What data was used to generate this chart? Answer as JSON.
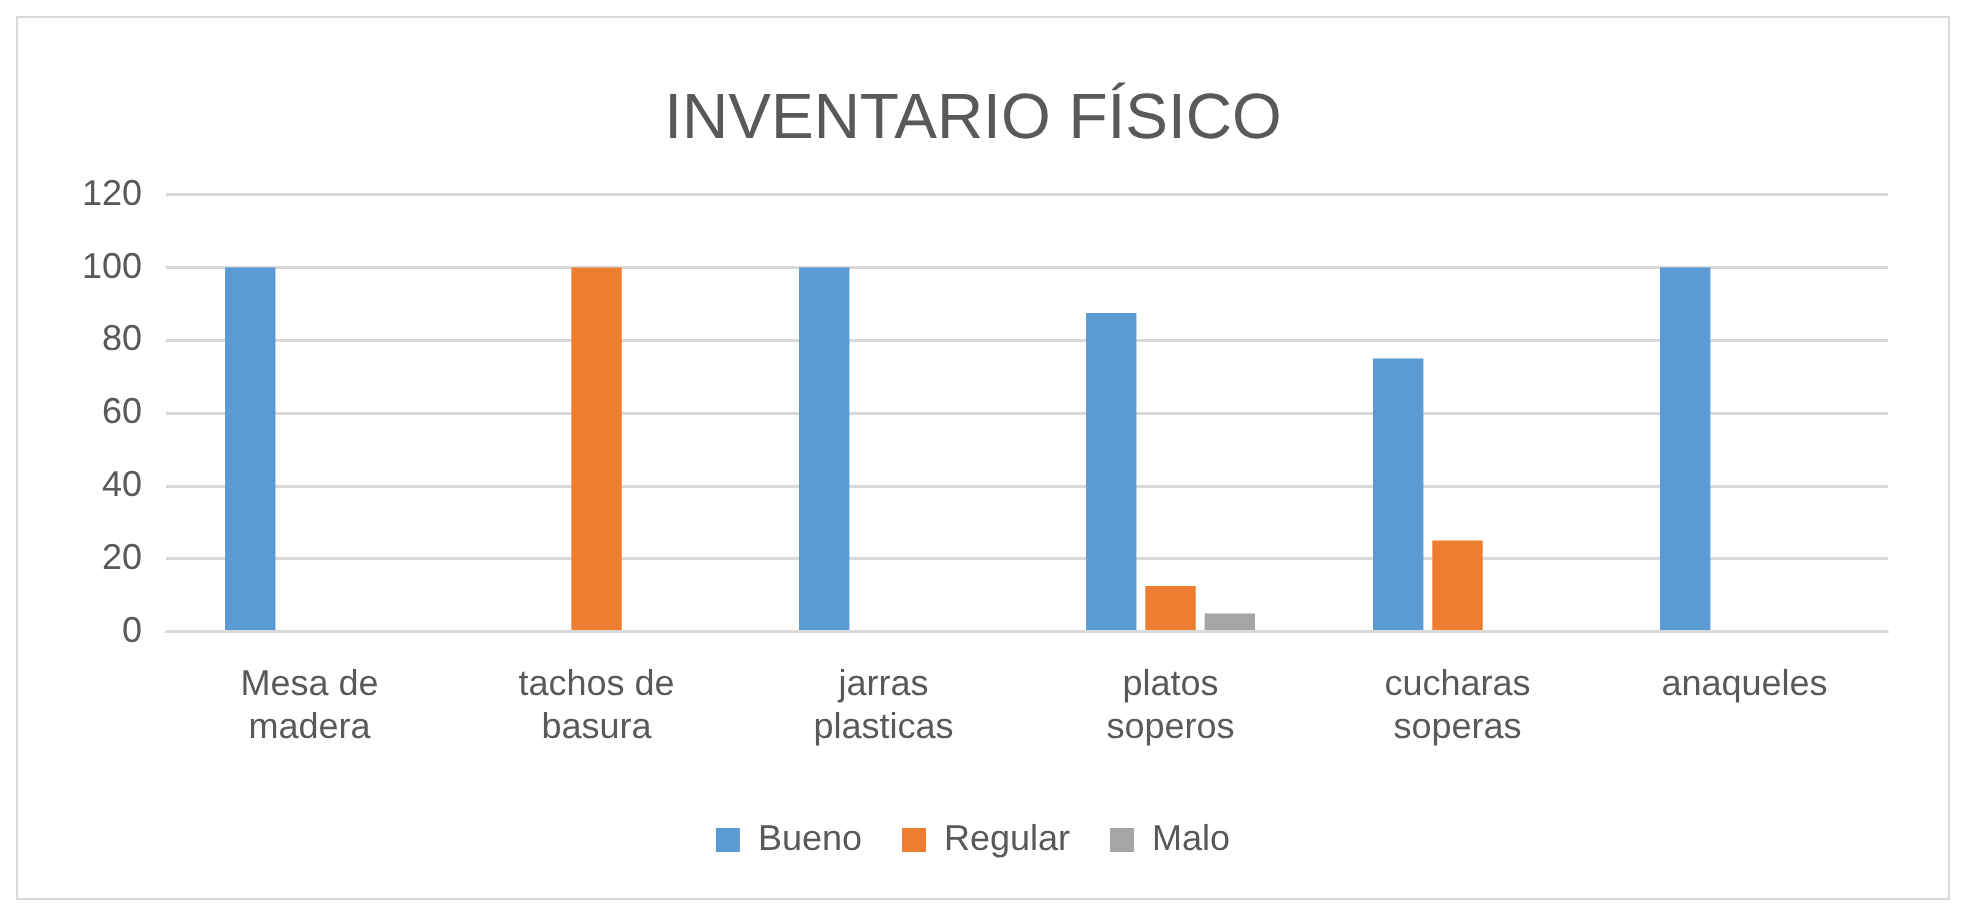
{
  "chart_data": {
    "type": "bar",
    "title": "INVENTARIO FÍSICO",
    "categories": [
      "Mesa de madera",
      "tachos de basura",
      "jarras plasticas",
      "platos soperos",
      "cucharas soperas",
      "anaqueles"
    ],
    "series": [
      {
        "name": "Bueno",
        "color": "#5b9bd5",
        "values": [
          100,
          0,
          100,
          87.5,
          75,
          100
        ]
      },
      {
        "name": "Regular",
        "color": "#ed7d31",
        "values": [
          0,
          100,
          0,
          12.5,
          25,
          0
        ]
      },
      {
        "name": "Malo",
        "color": "#a5a5a5",
        "values": [
          0,
          0,
          0,
          5,
          0,
          0
        ]
      }
    ],
    "ylim": [
      0,
      120
    ],
    "yticks": [
      0,
      20,
      40,
      60,
      80,
      100,
      120
    ],
    "grid": "y",
    "legend": "bottom"
  }
}
